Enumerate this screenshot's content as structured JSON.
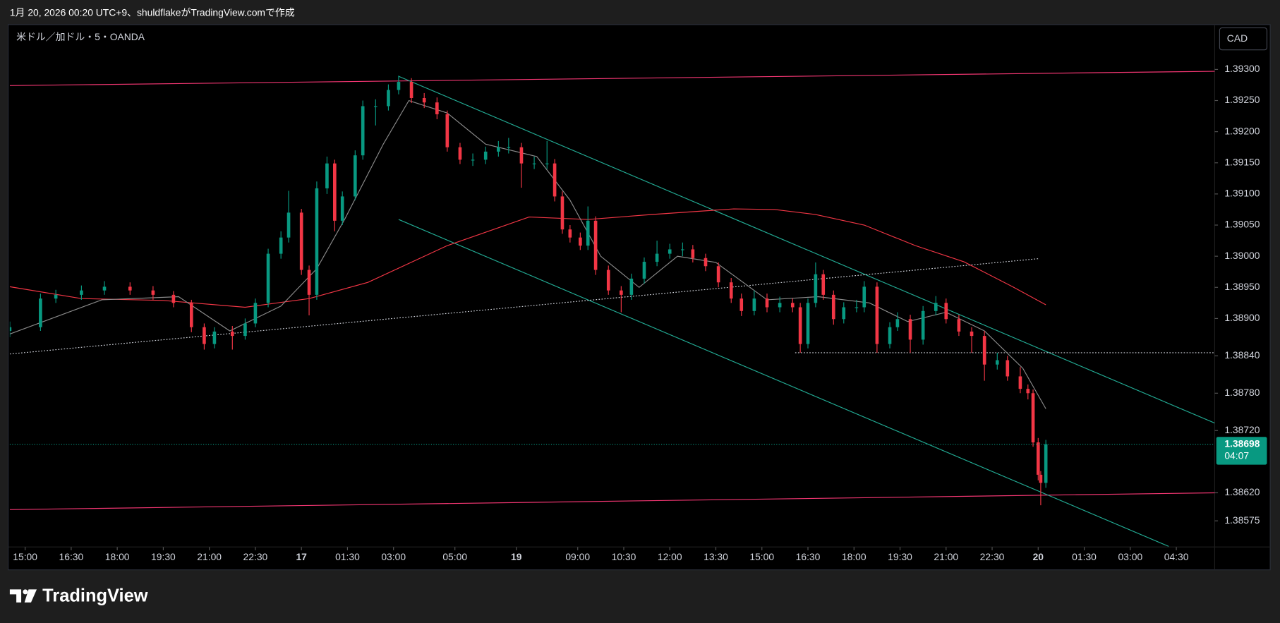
{
  "header": {
    "text": "1月 20, 2026 00:20 UTC+9、shuldflakeがTradingView.comで作成"
  },
  "footer": {
    "logo": "TradingView"
  },
  "chart_data": {
    "type": "candlestick",
    "title": "米ドル／加ドル・5・OANDA",
    "currency": "CAD",
    "up_color": "#089981",
    "down_color": "#f23645",
    "xlim": [
      -6,
      465
    ],
    "ylim": [
      1.38533,
      1.39372
    ],
    "xticks": [
      {
        "value": 0,
        "label": "15:00"
      },
      {
        "value": 18,
        "label": "16:30"
      },
      {
        "value": 36,
        "label": "18:00"
      },
      {
        "value": 54,
        "label": "19:30"
      },
      {
        "value": 72,
        "label": "21:00"
      },
      {
        "value": 90,
        "label": "22:30"
      },
      {
        "value": 108,
        "label": "17"
      },
      {
        "value": 126,
        "label": "01:30"
      },
      {
        "value": 144,
        "label": "03:00"
      },
      {
        "value": 168,
        "label": "05:00"
      },
      {
        "value": 192,
        "label": "19"
      },
      {
        "value": 216,
        "label": "09:00"
      },
      {
        "value": 234,
        "label": "10:30"
      },
      {
        "value": 252,
        "label": "12:00"
      },
      {
        "value": 270,
        "label": "13:30"
      },
      {
        "value": 288,
        "label": "15:00"
      },
      {
        "value": 306,
        "label": "16:30"
      },
      {
        "value": 324,
        "label": "18:00"
      },
      {
        "value": 342,
        "label": "19:30"
      },
      {
        "value": 360,
        "label": "21:00"
      },
      {
        "value": 378,
        "label": "22:30"
      },
      {
        "value": 396,
        "label": "20"
      },
      {
        "value": 414,
        "label": "01:30"
      },
      {
        "value": 432,
        "label": "03:00"
      },
      {
        "value": 450,
        "label": "04:30"
      }
    ],
    "yticks": [
      {
        "value": 1.393,
        "label": "1.39300"
      },
      {
        "value": 1.3925,
        "label": "1.39250"
      },
      {
        "value": 1.392,
        "label": "1.39200"
      },
      {
        "value": 1.3915,
        "label": "1.39150"
      },
      {
        "value": 1.391,
        "label": "1.39100"
      },
      {
        "value": 1.3905,
        "label": "1.39050"
      },
      {
        "value": 1.39,
        "label": "1.39000"
      },
      {
        "value": 1.3895,
        "label": "1.38950"
      },
      {
        "value": 1.389,
        "label": "1.38900"
      },
      {
        "value": 1.3884,
        "label": "1.38840"
      },
      {
        "value": 1.3878,
        "label": "1.38780"
      },
      {
        "value": 1.3872,
        "label": "1.38720"
      },
      {
        "value": 1.3862,
        "label": "1.38620"
      },
      {
        "value": 1.38575,
        "label": "1.38575"
      }
    ],
    "x": [
      -6,
      6,
      12,
      22,
      31,
      41,
      50,
      58,
      65,
      70,
      74,
      81,
      86,
      90,
      95,
      100,
      103,
      108,
      111,
      114,
      118,
      121,
      124,
      129,
      132,
      137,
      142,
      146,
      151,
      156,
      161,
      165,
      170,
      175,
      180,
      185,
      189,
      194,
      199,
      204,
      207,
      210,
      213,
      217,
      220,
      223,
      228,
      233,
      237,
      242,
      247,
      252,
      257,
      261,
      266,
      271,
      276,
      280,
      285,
      290,
      295,
      300,
      303,
      306,
      309,
      312,
      316,
      320,
      325,
      328,
      333,
      338,
      341,
      346,
      351,
      356,
      360,
      365,
      370,
      375,
      380,
      384,
      389,
      392,
      394,
      396,
      397,
      399
    ],
    "open": [
      1.3888,
      1.38886,
      1.38932,
      1.38938,
      1.38945,
      1.38951,
      1.38945,
      1.38938,
      1.38925,
      1.38886,
      1.38859,
      1.38879,
      1.38872,
      1.38892,
      1.38925,
      1.39004,
      1.3903,
      1.3907,
      1.38978,
      1.38938,
      1.39109,
      1.39149,
      1.39057,
      1.39096,
      1.39162,
      1.39241,
      1.39241,
      1.39267,
      1.3928,
      1.39254,
      1.39247,
      1.39228,
      1.39175,
      1.39155,
      1.39155,
      1.39168,
      1.39175,
      1.39175,
      1.39149,
      1.39149,
      1.39149,
      1.39096,
      1.39043,
      1.3903,
      1.39017,
      1.39057,
      1.38978,
      1.38945,
      1.38938,
      1.38964,
      1.38991,
      1.39004,
      1.39011,
      1.39011,
      1.38997,
      1.38984,
      1.38958,
      1.38932,
      1.38912,
      1.38932,
      1.38918,
      1.38925,
      1.38918,
      1.38859,
      1.38925,
      1.38971,
      1.38938,
      1.38899,
      1.38918,
      1.38918,
      1.38951,
      1.38859,
      1.38886,
      1.38899,
      1.38866,
      1.38912,
      1.38925,
      1.38899,
      1.38879,
      1.38872,
      1.38826,
      1.38833,
      1.38807,
      1.38787,
      1.3878,
      1.38701,
      1.38649,
      1.38636
    ],
    "high": [
      1.38895,
      1.3894,
      1.38946,
      1.38953,
      1.3896,
      1.38958,
      1.38952,
      1.38944,
      1.3893,
      1.38892,
      1.38886,
      1.38888,
      1.389,
      1.38932,
      1.39012,
      1.3904,
      1.39105,
      1.39076,
      1.38985,
      1.3912,
      1.3916,
      1.39155,
      1.39104,
      1.3917,
      1.3925,
      1.39252,
      1.39276,
      1.3929,
      1.39286,
      1.39262,
      1.39255,
      1.39234,
      1.39182,
      1.39165,
      1.39176,
      1.39185,
      1.3919,
      1.39182,
      1.3916,
      1.39185,
      1.39156,
      1.39104,
      1.3905,
      1.39038,
      1.3908,
      1.39064,
      1.38985,
      1.38952,
      1.38972,
      1.38998,
      1.39025,
      1.3902,
      1.39022,
      1.39018,
      1.39004,
      1.3899,
      1.38965,
      1.3894,
      1.38945,
      1.3894,
      1.38935,
      1.38932,
      1.38925,
      1.38932,
      1.3899,
      1.38978,
      1.38945,
      1.38926,
      1.3893,
      1.3896,
      1.38958,
      1.38894,
      1.3891,
      1.38906,
      1.3892,
      1.38936,
      1.38932,
      1.38906,
      1.38886,
      1.3888,
      1.38845,
      1.3884,
      1.38822,
      1.38794,
      1.38786,
      1.38708,
      1.38655,
      1.38705
    ],
    "low": [
      1.3887,
      1.3888,
      1.38925,
      1.3893,
      1.38938,
      1.38938,
      1.3893,
      1.38918,
      1.38878,
      1.3885,
      1.38852,
      1.3885,
      1.38866,
      1.38886,
      1.38918,
      1.38996,
      1.39022,
      1.3897,
      1.38905,
      1.3893,
      1.391,
      1.3904,
      1.3905,
      1.3909,
      1.39155,
      1.3921,
      1.39234,
      1.3926,
      1.39246,
      1.39238,
      1.3922,
      1.39168,
      1.39148,
      1.39145,
      1.39148,
      1.3916,
      1.39165,
      1.3911,
      1.3914,
      1.3914,
      1.39088,
      1.39036,
      1.39022,
      1.3901,
      1.3901,
      1.3897,
      1.38938,
      1.3891,
      1.3893,
      1.38956,
      1.38984,
      1.38996,
      1.39,
      1.3899,
      1.38976,
      1.3895,
      1.38925,
      1.38904,
      1.38905,
      1.3891,
      1.3891,
      1.3891,
      1.38845,
      1.38852,
      1.38918,
      1.3893,
      1.3889,
      1.38892,
      1.3891,
      1.3891,
      1.38845,
      1.38852,
      1.3888,
      1.38845,
      1.38858,
      1.38905,
      1.38892,
      1.38872,
      1.38845,
      1.388,
      1.38818,
      1.388,
      1.3878,
      1.3877,
      1.38694,
      1.3864,
      1.386,
      1.38628
    ],
    "close": [
      1.38886,
      1.38932,
      1.38938,
      1.38945,
      1.38951,
      1.38945,
      1.38938,
      1.38925,
      1.38886,
      1.38859,
      1.38879,
      1.38872,
      1.38892,
      1.38925,
      1.39004,
      1.3903,
      1.3907,
      1.38978,
      1.38938,
      1.39109,
      1.39149,
      1.39057,
      1.39096,
      1.39162,
      1.39241,
      1.39241,
      1.39267,
      1.3928,
      1.39254,
      1.39247,
      1.39228,
      1.39175,
      1.39155,
      1.39155,
      1.39168,
      1.39175,
      1.39175,
      1.39149,
      1.39149,
      1.39149,
      1.39096,
      1.39043,
      1.3903,
      1.39017,
      1.39057,
      1.38978,
      1.38945,
      1.38938,
      1.38964,
      1.38991,
      1.39004,
      1.39011,
      1.39011,
      1.38997,
      1.38984,
      1.38958,
      1.38932,
      1.38912,
      1.38932,
      1.38918,
      1.38925,
      1.38918,
      1.38859,
      1.38925,
      1.38971,
      1.38938,
      1.38899,
      1.38918,
      1.38918,
      1.38951,
      1.38859,
      1.38886,
      1.38899,
      1.38866,
      1.38912,
      1.38925,
      1.38899,
      1.38879,
      1.38872,
      1.38826,
      1.38833,
      1.38807,
      1.38787,
      1.3878,
      1.38701,
      1.38649,
      1.38636,
      1.38698
    ],
    "moving_averages": [
      {
        "color": "#f23645",
        "x": [
          -6,
          22,
          54,
          86,
          111,
          134,
          165,
          197,
          220,
          245,
          277,
          293,
          309,
          328,
          348,
          367,
          386,
          399
        ],
        "values": [
          1.38951,
          1.38932,
          1.38929,
          1.38918,
          1.38932,
          1.38958,
          1.39017,
          1.39063,
          1.39059,
          1.39067,
          1.39076,
          1.39075,
          1.39067,
          1.3905,
          1.39017,
          1.38991,
          1.38951,
          1.38922
        ]
      },
      {
        "color": "#8a8a8a",
        "x": [
          -6,
          30,
          60,
          80,
          100,
          114,
          125,
          140,
          150,
          165,
          180,
          200,
          213,
          225,
          240,
          255,
          270,
          290,
          310,
          330,
          345,
          360,
          375,
          390,
          399
        ],
        "values": [
          1.38875,
          1.3893,
          1.38935,
          1.3888,
          1.3892,
          1.3898,
          1.3906,
          1.3918,
          1.3925,
          1.3923,
          1.3918,
          1.3916,
          1.3909,
          1.39,
          1.3895,
          1.39,
          1.3899,
          1.3893,
          1.38935,
          1.38925,
          1.38895,
          1.3891,
          1.3888,
          1.3882,
          1.38755
        ]
      }
    ],
    "trend_lines": [
      {
        "color": "#f23672",
        "style": "solid",
        "x": [
          -6,
          465
        ],
        "y": [
          1.39274,
          1.39297
        ]
      },
      {
        "color": "#f23672",
        "style": "solid",
        "x": [
          -6,
          465
        ],
        "y": [
          1.38593,
          1.3862
        ]
      },
      {
        "color": "#22ab94",
        "style": "solid",
        "x": [
          146,
          465
        ],
        "y": [
          1.39289,
          1.38732
        ]
      },
      {
        "color": "#22ab94",
        "style": "solid",
        "x": [
          146,
          447
        ],
        "y": [
          1.39059,
          1.38534
        ]
      },
      {
        "color": "#d1d4dc",
        "style": "dotted",
        "x": [
          -6,
          396
        ],
        "y": [
          1.38843,
          1.38996
        ]
      },
      {
        "color": "#d1d4dc",
        "style": "dotted",
        "x": [
          301,
          465
        ],
        "y": [
          1.38845,
          1.38845
        ]
      }
    ],
    "last_price": 1.38698,
    "countdown": "04:07"
  }
}
